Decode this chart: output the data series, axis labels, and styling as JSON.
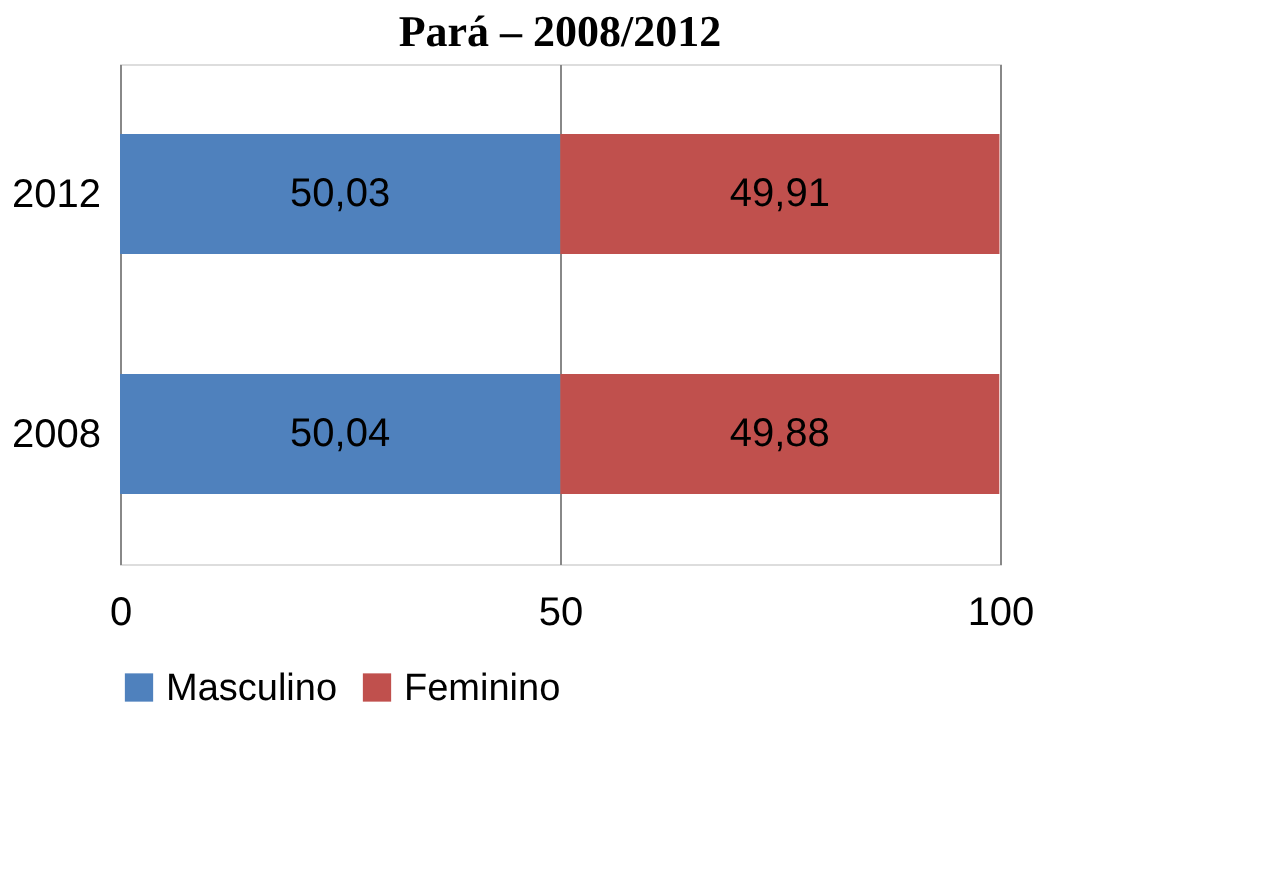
{
  "chart_data": {
    "type": "bar",
    "title": "Pará – 2008/2012",
    "orientation": "horizontal",
    "stacked": true,
    "categories": [
      "2012",
      "2008"
    ],
    "series": [
      {
        "name": "Masculino",
        "color": "#4f81bd",
        "values": [
          50.03,
          50.04
        ],
        "value_labels": [
          "50,03",
          "50,04"
        ]
      },
      {
        "name": "Feminino",
        "color": "#c0504d",
        "values": [
          49.91,
          49.88
        ],
        "value_labels": [
          "49,91",
          "49,88"
        ]
      }
    ],
    "xlim": [
      0,
      100
    ],
    "xticks": [
      0,
      50,
      100
    ],
    "grid": "x",
    "legend": "bottom"
  }
}
